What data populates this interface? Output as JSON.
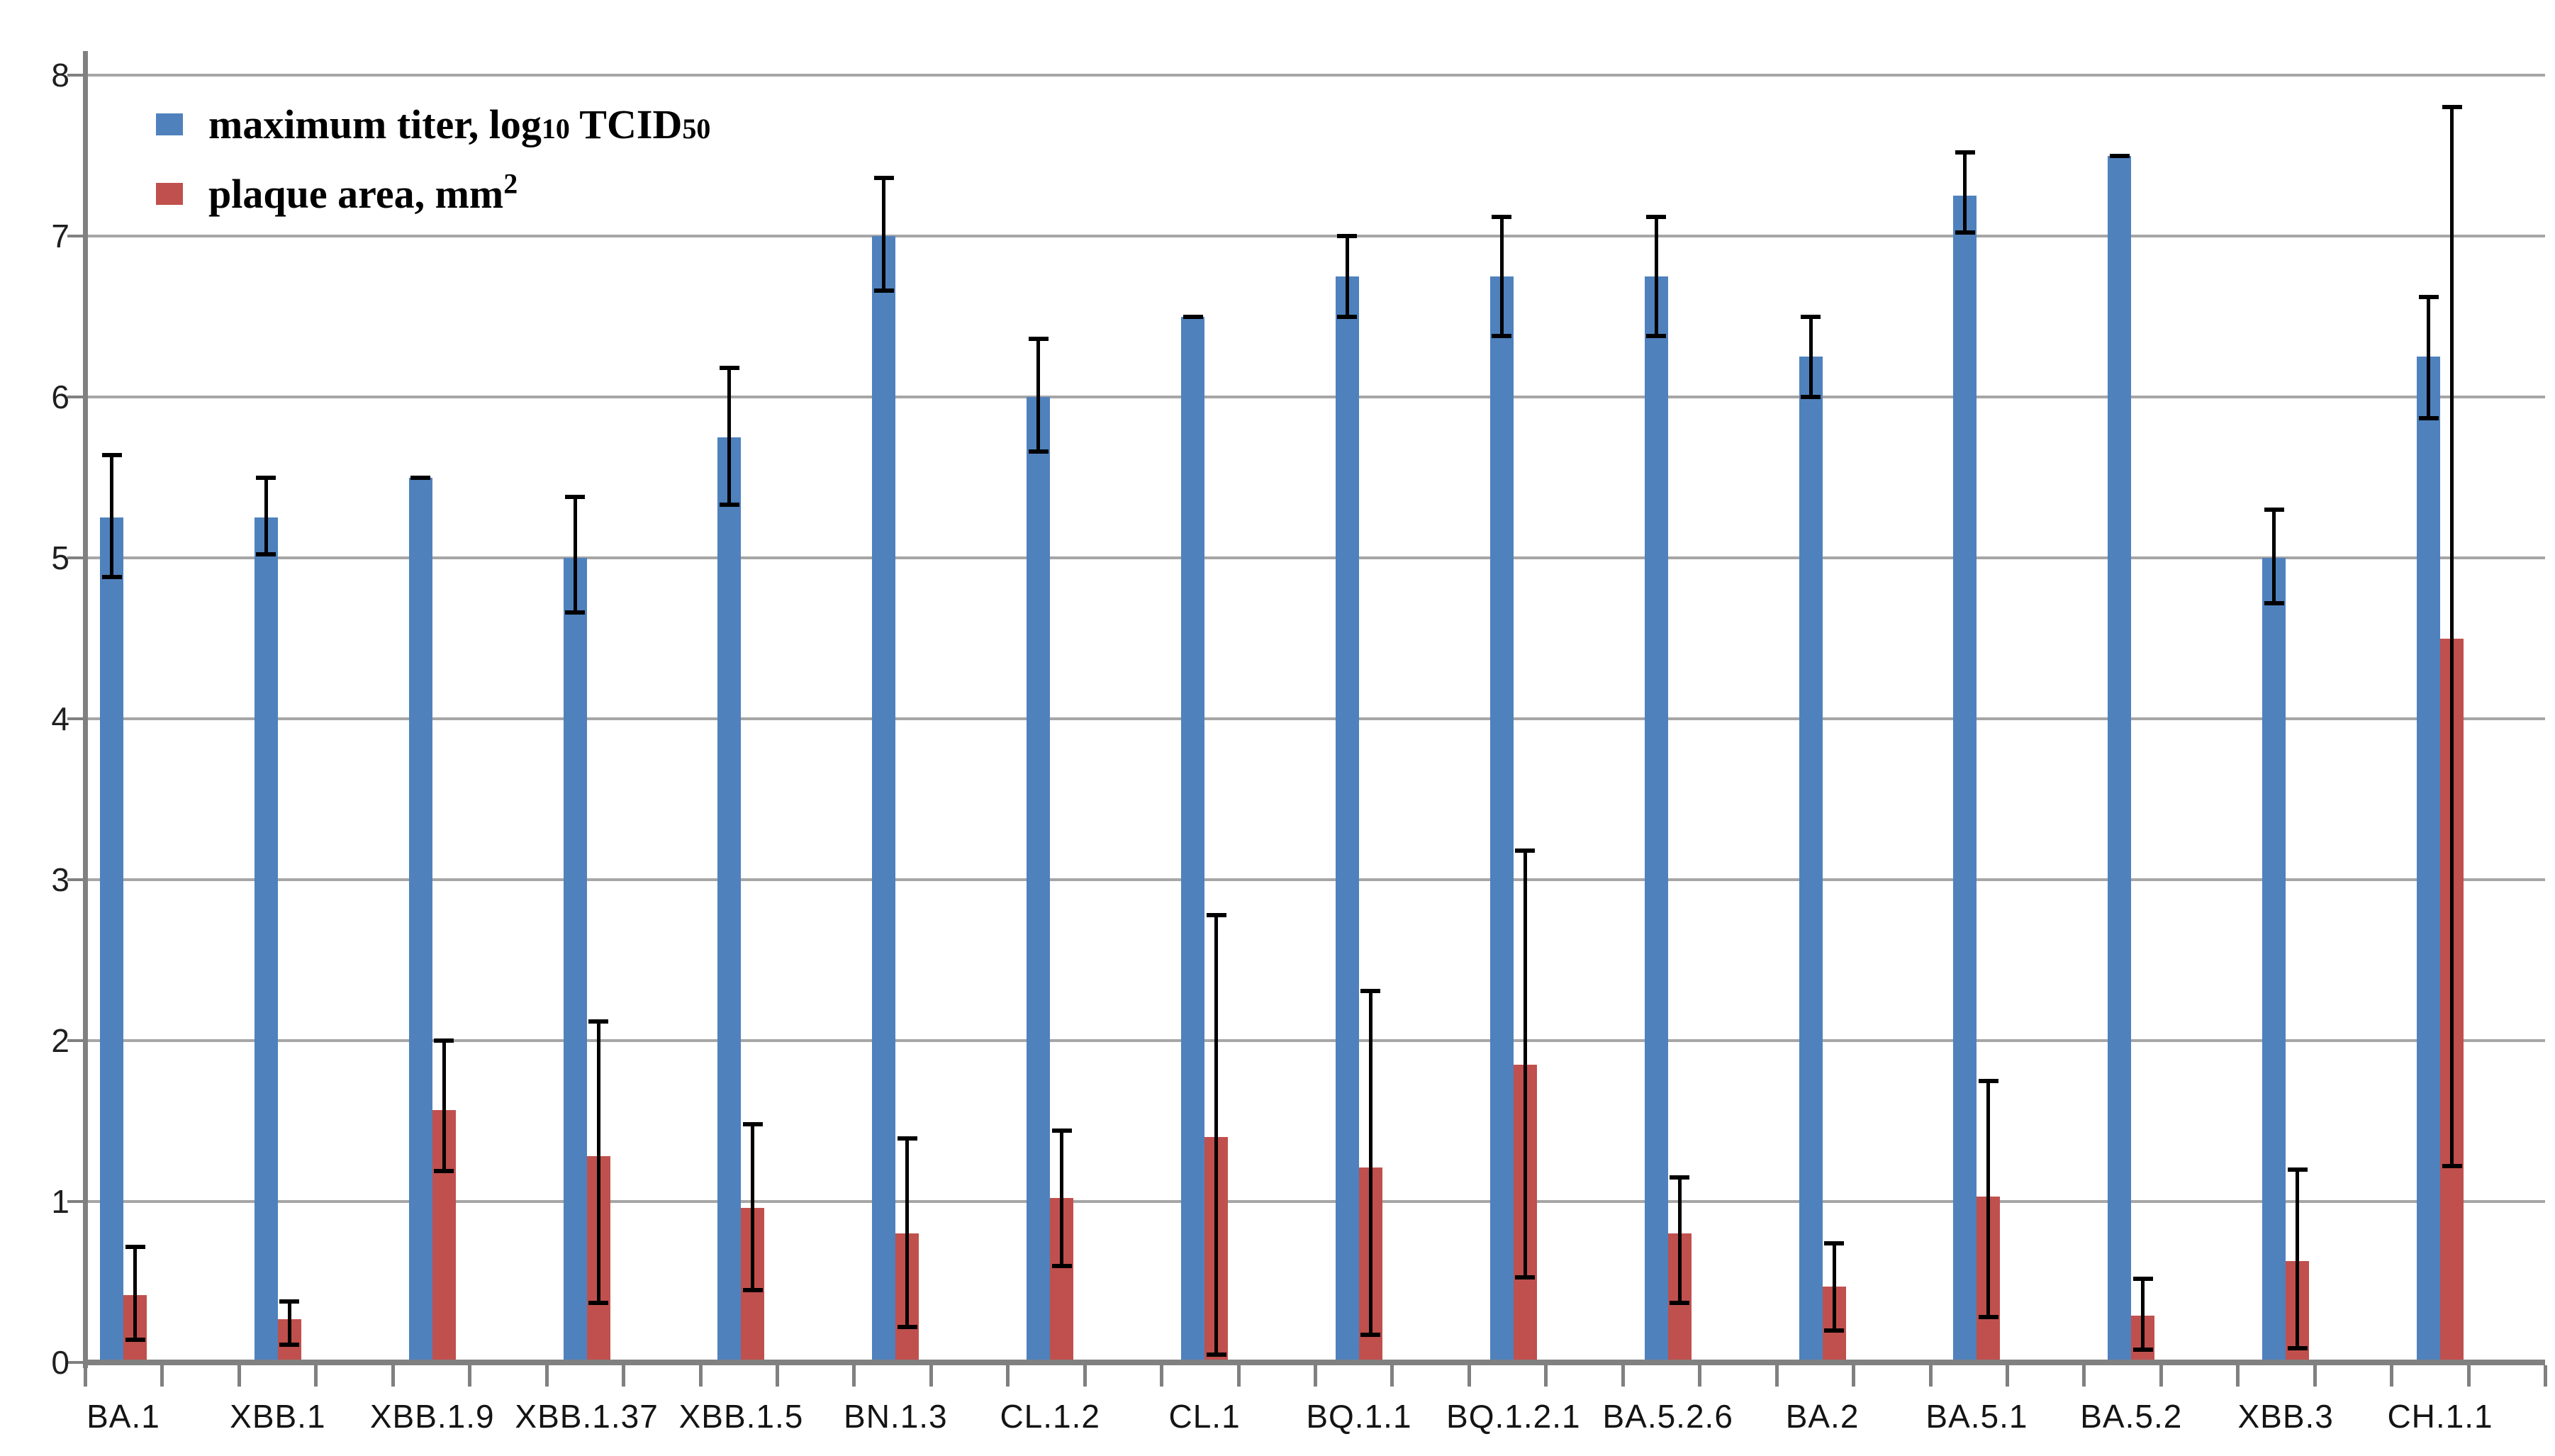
{
  "page": {
    "background": "#ffffff",
    "description": "Grouped bar chart comparing SARS-CoV-2 omicron variants by maximum titer and plaque area, with error bars"
  },
  "legend": {
    "position": "top-left",
    "items": [
      {
        "swatch_color": "#4f81bd",
        "plain": "maximum titer, log10 TCID50",
        "parts": {
          "p0": "maximum titer, log",
          "sub1": "10",
          "p1": " TCID",
          "sub2": "50"
        }
      },
      {
        "swatch_color": "#c0504d",
        "plain": "plaque area, mm2",
        "parts": {
          "p0": " plaque area, mm",
          "sup1": "2"
        }
      }
    ]
  },
  "axes": {
    "y_tick_labels": [
      "0",
      "1",
      "2",
      "3",
      "4",
      "5",
      "6",
      "7",
      "8"
    ],
    "y_min": 0,
    "y_max": 8,
    "y_interval": 1
  },
  "chart_data": {
    "type": "bar",
    "title": "",
    "xlabel": "",
    "ylabel": "",
    "ylim": [
      0,
      8
    ],
    "ytick_interval": 1,
    "grid": true,
    "legend_position": "top-left",
    "gridline_color": "#a6a6a6",
    "axis_color": "#808080",
    "error_bar_color": "#000000",
    "categories": [
      "BA.1",
      "XBB.1",
      "XBB.1.9",
      "XBB.1.37",
      "XBB.1.5",
      "BN.1.3",
      "CL.1.2",
      "CL.1",
      "BQ.1.1",
      "BQ.1.2.1",
      "BA.5.2.6",
      "BA.2",
      "BA.5.1",
      "BA.5.2",
      "XBB.3",
      "CH.1.1"
    ],
    "series": [
      {
        "name": "maximum titer, log10 TCID50",
        "color": "#4f81bd",
        "values": [
          5.25,
          5.25,
          5.5,
          5.0,
          5.75,
          7.0,
          6.0,
          6.5,
          6.75,
          6.75,
          6.75,
          6.25,
          7.25,
          7.5,
          5.0,
          6.25
        ],
        "error_low": [
          4.88,
          5.02,
          5.5,
          4.66,
          5.33,
          6.66,
          5.66,
          6.5,
          6.5,
          6.38,
          6.38,
          6.0,
          7.02,
          7.5,
          4.72,
          5.87
        ],
        "error_high": [
          5.64,
          5.5,
          5.5,
          5.38,
          6.18,
          7.36,
          6.36,
          6.5,
          7.0,
          7.12,
          7.12,
          6.5,
          7.52,
          7.5,
          5.3,
          6.62
        ]
      },
      {
        "name": "plaque area, mm2",
        "color": "#c0504d",
        "values": [
          0.42,
          0.27,
          1.57,
          1.28,
          0.96,
          0.8,
          1.02,
          1.4,
          1.21,
          1.85,
          0.8,
          0.47,
          1.03,
          0.29,
          0.63,
          4.5
        ],
        "error_low": [
          0.14,
          0.11,
          1.19,
          0.37,
          0.45,
          0.22,
          0.6,
          0.05,
          0.17,
          0.53,
          0.37,
          0.2,
          0.28,
          0.08,
          0.09,
          1.22
        ],
        "error_high": [
          0.72,
          0.38,
          2.0,
          2.12,
          1.48,
          1.39,
          1.44,
          2.78,
          2.31,
          3.18,
          1.15,
          0.74,
          1.75,
          0.52,
          1.2,
          7.8
        ]
      }
    ]
  }
}
